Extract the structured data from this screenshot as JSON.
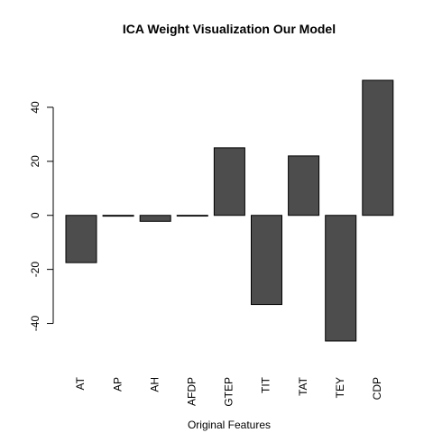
{
  "chart_data": {
    "type": "bar",
    "title": "ICA Weight Visualization Our Model",
    "xlabel": "Original Features",
    "ylabel": "",
    "categories": [
      "AT",
      "AP",
      "AH",
      "AFDP",
      "GTEP",
      "TIT",
      "TAT",
      "TEY",
      "CDP"
    ],
    "values": [
      -17.5,
      -0.3,
      -2.2,
      -0.2,
      25,
      -33,
      22,
      -46.5,
      50
    ],
    "ylim": [
      -46.5,
      50
    ],
    "yticks": [
      -40,
      -20,
      0,
      20,
      40
    ],
    "bar_color": "#4d4d4d",
    "grid": false,
    "legend": "none"
  }
}
